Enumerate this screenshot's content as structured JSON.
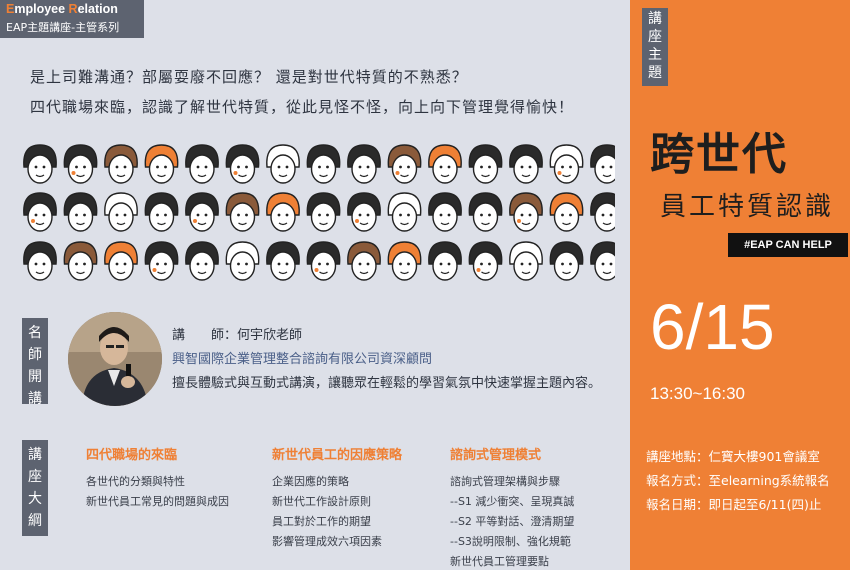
{
  "header": {
    "brand_cap1": "E",
    "brand_rest1": "mployee ",
    "brand_cap2": "R",
    "brand_rest2": "elation",
    "series": "EAP主題講座-主管系列"
  },
  "intro": {
    "line1": "是上司難溝通？部屬耍廢不回應？ 還是對世代特質的不熟悉？",
    "line2": "四代職場來臨，認識了解世代特質，從此見怪不怪，向上向下管理覺得愉快！"
  },
  "labels": {
    "topic": [
      "講",
      "座",
      "主",
      "題"
    ],
    "lecturer": [
      "名",
      "師",
      "開",
      "講"
    ],
    "outline": [
      "講",
      "座",
      "大",
      "綱"
    ]
  },
  "lecturer": {
    "name": "講　　師：何宇欣老師",
    "title": "興智國際企業管理整合諮詢有限公司資深顧問",
    "desc": "擅長體驗式與互動式講演，讓聽眾在輕鬆的學習氣氛中快速掌握主題內容。"
  },
  "outline": {
    "col1": {
      "title": "四代職場的來臨",
      "items": [
        "各世代的分類與特性",
        "新世代員工常見的問題與成因"
      ]
    },
    "col2": {
      "title": "新世代員工的因應策略",
      "items": [
        "企業因應的策略",
        "新世代工作設計原則",
        "員工對於工作的期望",
        "影響管理成效六項因素"
      ]
    },
    "col3": {
      "title": "諮詢式管理模式",
      "items": [
        "諮詢式管理架構與步驟",
        "--S1 減少衝突、呈現真誠",
        "--S2 平等對話、澄清期望",
        "--S3說明限制、強化規範",
        "新世代員工管理要點"
      ]
    }
  },
  "event": {
    "title": "跨世代",
    "subtitle": "員工特質認識",
    "tag": "#EAP CAN HELP",
    "date": "6/15",
    "time": "13:30~16:30",
    "location": "講座地點：仁寶大樓901會議室",
    "register": "報名方式：至elearning系統報名",
    "deadline": "報名日期：即日起至6/11(四)止"
  },
  "colors": {
    "accent": "#ef8035",
    "panel": "#dde0e8",
    "label": "#5d6370",
    "link": "#4a5f88"
  }
}
